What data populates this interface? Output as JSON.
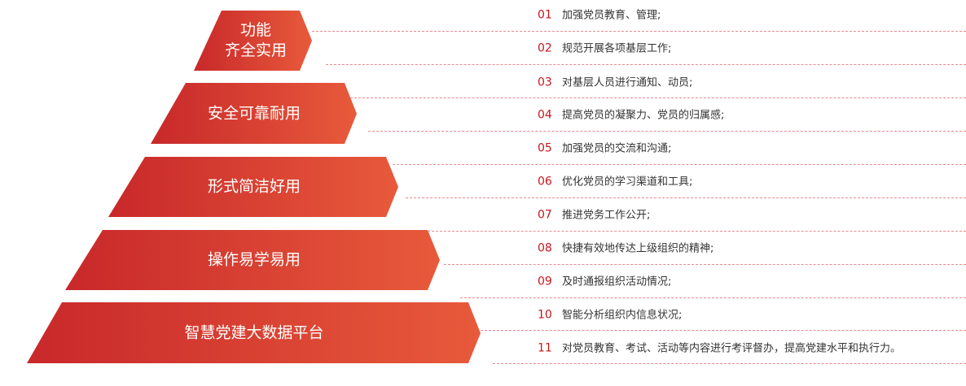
{
  "pyramid": [
    {
      "label_lines": [
        "功能",
        "齐全实用"
      ]
    },
    {
      "label_lines": [
        "安全可靠耐用"
      ]
    },
    {
      "label_lines": [
        "形式简洁好用"
      ]
    },
    {
      "label_lines": [
        "操作易学易用"
      ]
    },
    {
      "label_lines": [
        "智慧党建大数据平台"
      ]
    }
  ],
  "colors": {
    "gradient_start": "#c8282a",
    "gradient_end": "#e85a3b",
    "number": "#c8161d",
    "dash": "#e98a8e"
  },
  "items": [
    {
      "num": "01",
      "text": "加强党员教育、管理;"
    },
    {
      "num": "02",
      "text": "规范开展各项基层工作;"
    },
    {
      "num": "03",
      "text": "对基层人员进行通知、动员;"
    },
    {
      "num": "04",
      "text": "提高党员的凝聚力、党员的归属感;"
    },
    {
      "num": "05",
      "text": "加强党员的交流和沟通;"
    },
    {
      "num": "06",
      "text": "优化党员的学习渠道和工具;"
    },
    {
      "num": "07",
      "text": "推进党务工作公开;"
    },
    {
      "num": "08",
      "text": "快捷有效地传达上级组织的精神;"
    },
    {
      "num": "09",
      "text": "及时通报组织活动情况;"
    },
    {
      "num": "10",
      "text": "智能分析组织内信息状况;"
    },
    {
      "num": "11",
      "text": "对党员教育、考试、活动等内容进行考评督办，提高党建水平和执行力。"
    }
  ]
}
